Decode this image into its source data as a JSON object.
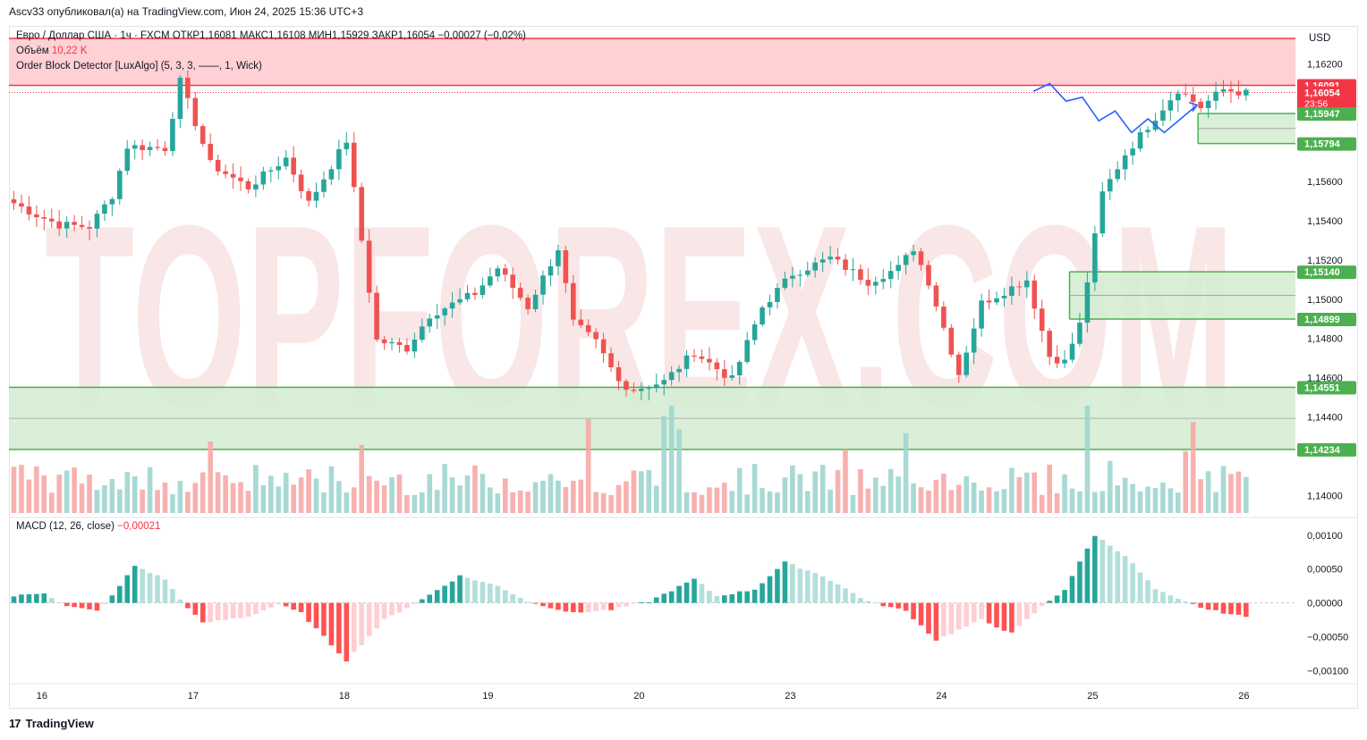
{
  "header": {
    "publisher_line": "Ascv33 опубликовал(а) на TradingView.com, Июн 24, 2025 15:36 UTC+3"
  },
  "legend": {
    "symbol_line": "Евро / Доллар США · 1ч · FXCM  ОТКР1,16081  МАКС1,16108  МИН1,15929  ЗАКР1,16054  −0,00027 (−0,02%)",
    "volume_label": "Объём",
    "volume_value": "10,22 K",
    "indicator_line": "Order Block Detector [LuxAlgo] (5, 3, 3, ——, 1, Wick)",
    "macd_label": "MACD (12, 26, close)",
    "macd_value": "−0,00021"
  },
  "currency": "USD",
  "footer": {
    "brand": "TradingView"
  },
  "watermark": {
    "text": "TOPFOREX.COM"
  },
  "colors": {
    "up": "#26a69a",
    "down": "#ef5350",
    "zone_red_fill": "#ffcdd2",
    "zone_red_line": "#f23645",
    "zone_green_fill": "#d4ecd0",
    "zone_green_line": "#4caf50",
    "projection": "#2962ff"
  },
  "chart_data": {
    "type": "candlestick",
    "symbol": "EURUSD",
    "timeframe": "1h",
    "x_tick_labels": [
      "16",
      "17",
      "18",
      "19",
      "20",
      "23",
      "24",
      "25",
      "26"
    ],
    "price_axis_labels": [
      "1,16200",
      "1,15600",
      "1,15400",
      "1,15200",
      "1,15000",
      "1,14800",
      "1,14600",
      "1,14400",
      "1,14000"
    ],
    "ylim": [
      1.1391,
      1.1633
    ],
    "price_tags": [
      {
        "value": 1.16091,
        "label": "1,16091",
        "kind": "zone_red"
      },
      {
        "value": 1.16054,
        "label": "1,16054",
        "sub": "23:56",
        "kind": "last"
      },
      {
        "value": 1.15947,
        "label": "1,15947",
        "kind": "zone_green"
      },
      {
        "value": 1.15794,
        "label": "1,15794",
        "kind": "zone_green"
      },
      {
        "value": 1.1514,
        "label": "1,15140",
        "kind": "zone_green"
      },
      {
        "value": 1.14899,
        "label": "1,14899",
        "kind": "zone_green"
      },
      {
        "value": 1.14551,
        "label": "1,14551",
        "kind": "zone_green"
      },
      {
        "value": 1.14234,
        "label": "1,14234",
        "kind": "zone_green"
      }
    ],
    "order_blocks": [
      {
        "type": "bearish",
        "top": 1.1633,
        "bottom": 1.16091,
        "start_bar": 0
      },
      {
        "type": "bullish",
        "top": 1.15947,
        "bottom": 1.15794,
        "start_bar": 157
      },
      {
        "type": "bullish",
        "top": 1.1514,
        "bottom": 1.14899,
        "start_bar": 140
      },
      {
        "type": "bullish",
        "top": 1.14551,
        "bottom": 1.14234,
        "start_bar": 0
      }
    ],
    "waypoints": [
      [
        0,
        1.1549
      ],
      [
        3,
        1.1543
      ],
      [
        6,
        1.1538
      ],
      [
        10,
        1.1537
      ],
      [
        13,
        1.1553
      ],
      [
        15,
        1.1578
      ],
      [
        20,
        1.1577
      ],
      [
        22,
        1.1611
      ],
      [
        26,
        1.1569
      ],
      [
        31,
        1.1557
      ],
      [
        36,
        1.1572
      ],
      [
        39,
        1.1549
      ],
      [
        44,
        1.1581
      ],
      [
        48,
        1.1479
      ],
      [
        52,
        1.1475
      ],
      [
        55,
        1.1492
      ],
      [
        61,
        1.1503
      ],
      [
        64,
        1.1516
      ],
      [
        68,
        1.1496
      ],
      [
        72,
        1.1526
      ],
      [
        74,
        1.1488
      ],
      [
        77,
        1.1478
      ],
      [
        80,
        1.1458
      ],
      [
        82,
        1.1454
      ],
      [
        86,
        1.1458
      ],
      [
        90,
        1.1473
      ],
      [
        95,
        1.1459
      ],
      [
        99,
        1.1496
      ],
      [
        103,
        1.1513
      ],
      [
        108,
        1.1521
      ],
      [
        113,
        1.1509
      ],
      [
        117,
        1.1516
      ],
      [
        119,
        1.1526
      ],
      [
        121,
        1.1509
      ],
      [
        125,
        1.1462
      ],
      [
        128,
        1.1498
      ],
      [
        134,
        1.151
      ],
      [
        137,
        1.1471
      ],
      [
        139,
        1.1468
      ],
      [
        141,
        1.1487
      ],
      [
        144,
        1.1554
      ],
      [
        147,
        1.1574
      ],
      [
        151,
        1.1593
      ],
      [
        154,
        1.1607
      ],
      [
        157,
        1.1598
      ],
      [
        160,
        1.1607
      ],
      [
        163,
        1.1605
      ]
    ],
    "projection_path": [
      [
        1.1606
      ],
      [
        1.161
      ],
      [
        1.1601
      ],
      [
        1.1603
      ],
      [
        1.1591
      ],
      [
        1.1596
      ],
      [
        1.1585
      ],
      [
        1.1592
      ],
      [
        1.1585
      ],
      [
        1.1592
      ],
      [
        1.1599
      ]
    ],
    "macd_axis_labels": [
      "0,00100",
      "0,00050",
      "0,00000",
      "−0,00050",
      "−0,00100"
    ],
    "macd_ylim": [
      -0.00118,
      0.00113
    ],
    "macd_waypoints": [
      [
        0,
        0.0001
      ],
      [
        4,
        0.00015
      ],
      [
        7,
        -5e-05
      ],
      [
        11,
        -0.00012
      ],
      [
        13,
        0.0001
      ],
      [
        16,
        0.00055
      ],
      [
        20,
        0.00035
      ],
      [
        22,
        5e-05
      ],
      [
        25,
        -0.0003
      ],
      [
        31,
        -0.0002
      ],
      [
        35,
        -2e-05
      ],
      [
        38,
        -0.00015
      ],
      [
        44,
        -0.00085
      ],
      [
        49,
        -0.00025
      ],
      [
        54,
        5e-05
      ],
      [
        59,
        0.0004
      ],
      [
        64,
        0.00025
      ],
      [
        68,
        2e-05
      ],
      [
        74,
        -0.00015
      ],
      [
        79,
        -0.0001
      ],
      [
        84,
        2e-05
      ],
      [
        90,
        0.00035
      ],
      [
        93,
        0.0001
      ],
      [
        98,
        0.0002
      ],
      [
        102,
        0.0006
      ],
      [
        107,
        0.0004
      ],
      [
        113,
        2e-05
      ],
      [
        118,
        -0.00012
      ],
      [
        122,
        -0.00055
      ],
      [
        128,
        -0.00025
      ],
      [
        132,
        -0.00045
      ],
      [
        136,
        -5e-05
      ],
      [
        139,
        0.0002
      ],
      [
        143,
        0.001
      ],
      [
        147,
        0.0007
      ],
      [
        151,
        0.0002
      ],
      [
        154,
        5e-05
      ],
      [
        158,
        -0.0001
      ],
      [
        163,
        -0.00021
      ]
    ],
    "xlabel": "",
    "ylabel": ""
  }
}
